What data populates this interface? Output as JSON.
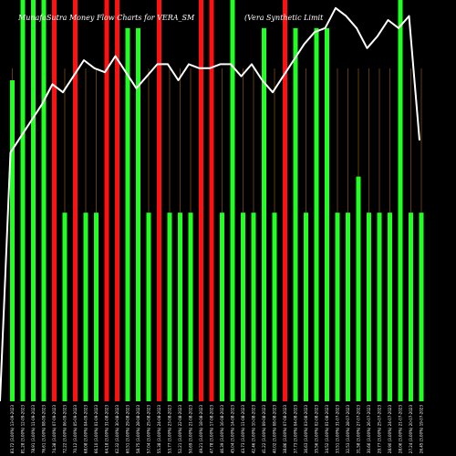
{
  "chart_data": {
    "type": "bar",
    "title_left": "MunafaSutra Money Flow Charts for VERA_SM",
    "title_right": "(Vera Synthetic Limit",
    "ylim": [
      0,
      100
    ],
    "colors": {
      "background": "#000000",
      "up": "#22ff22",
      "down": "#ff1111",
      "line": "#ffffff",
      "gap_line": "#7a4a12"
    },
    "categories": [
      "13-09-2023",
      "12-09-2023",
      "11-09-2023",
      "08-09-2023",
      "07-09-2023",
      "06-09-2023",
      "05-09-2023",
      "04-09-2023",
      "01-09-2023",
      "31-08-2023",
      "30-08-2023",
      "29-08-2023",
      "28-08-2023",
      "25-08-2023",
      "24-08-2023",
      "23-08-2023",
      "22-08-2023",
      "21-08-2023",
      "18-08-2023",
      "17-08-2023",
      "16-08-2023",
      "14-08-2023",
      "11-08-2023",
      "10-08-2023",
      "09-08-2023",
      "08-08-2023",
      "07-08-2023",
      "04-08-2023",
      "03-08-2023",
      "02-08-2023",
      "01-08-2023",
      "31-07-2023",
      "28-07-2023",
      "27-07-2023",
      "26-07-2023",
      "25-07-2023",
      "24-07-2023",
      "21-07-2023",
      "20-07-2023",
      "19-07-2023"
    ],
    "tick_labels": [
      "83.72 (3.00%)",
      "81.28 (3.00%)",
      "78.91 (3.00%)",
      "76.61 (3.00%)",
      "74.38 (3.00%)",
      "72.22 (3.00%)",
      "70.12 (3.00%)",
      "68.08 (3.00%)",
      "66.10 (3.00%)",
      "64.18 (3.00%)",
      "62.32 (3.00%)",
      "60.51 (3.00%)",
      "58.75 (3.00%)",
      "57.04 (3.00%)",
      "55.38 (3.00%)",
      "53.77 (3.00%)",
      "52.21 (3.00%)",
      "50.69 (3.00%)",
      "49.21 (3.00%)",
      "47.78 (3.00%)",
      "46.39 (3.00%)",
      "45.04 (3.00%)",
      "43.73 (3.00%)",
      "42.46 (3.00%)",
      "41.22 (3.00%)",
      "40.02 (3.00%)",
      "38.86 (3.00%)",
      "37.73 (3.00%)",
      "36.63 (3.00%)",
      "35.56 (3.00%)",
      "34.52 (3.00%)",
      "33.51 (3.00%)",
      "32.53 (3.00%)",
      "31.58 (3.00%)",
      "30.66 (3.00%)",
      "29.77 (3.00%)",
      "28.90 (3.00%)",
      "28.06 (3.00%)",
      "27.24 (3.00%)",
      "26.45 (3.00%)"
    ],
    "series": [
      {
        "type": "bar",
        "values": [
          80,
          100,
          100,
          100,
          100,
          47,
          100,
          47,
          47,
          100,
          100,
          93,
          93,
          47,
          100,
          47,
          47,
          47,
          100,
          100,
          47,
          100,
          47,
          47,
          93,
          47,
          100,
          93,
          47,
          93,
          93,
          47,
          47,
          56,
          47,
          47,
          47,
          100,
          47,
          47
        ],
        "directions": [
          "up",
          "up",
          "up",
          "up",
          "down",
          "up",
          "down",
          "up",
          "up",
          "down",
          "down",
          "up",
          "up",
          "up",
          "down",
          "up",
          "up",
          "up",
          "down",
          "down",
          "up",
          "up",
          "up",
          "up",
          "up",
          "up",
          "down",
          "up",
          "up",
          "up",
          "up",
          "up",
          "up",
          "up",
          "up",
          "up",
          "up",
          "up",
          "up",
          "up"
        ]
      },
      {
        "type": "line",
        "values": [
          62,
          66,
          70,
          74,
          79,
          77,
          81,
          85,
          83,
          82,
          86,
          82,
          78,
          81,
          84,
          84,
          80,
          84,
          83,
          83,
          84,
          84,
          81,
          84,
          80,
          77,
          81,
          85,
          89,
          92,
          93,
          98,
          96,
          93,
          88,
          91,
          95,
          93,
          96,
          65
        ]
      }
    ]
  }
}
